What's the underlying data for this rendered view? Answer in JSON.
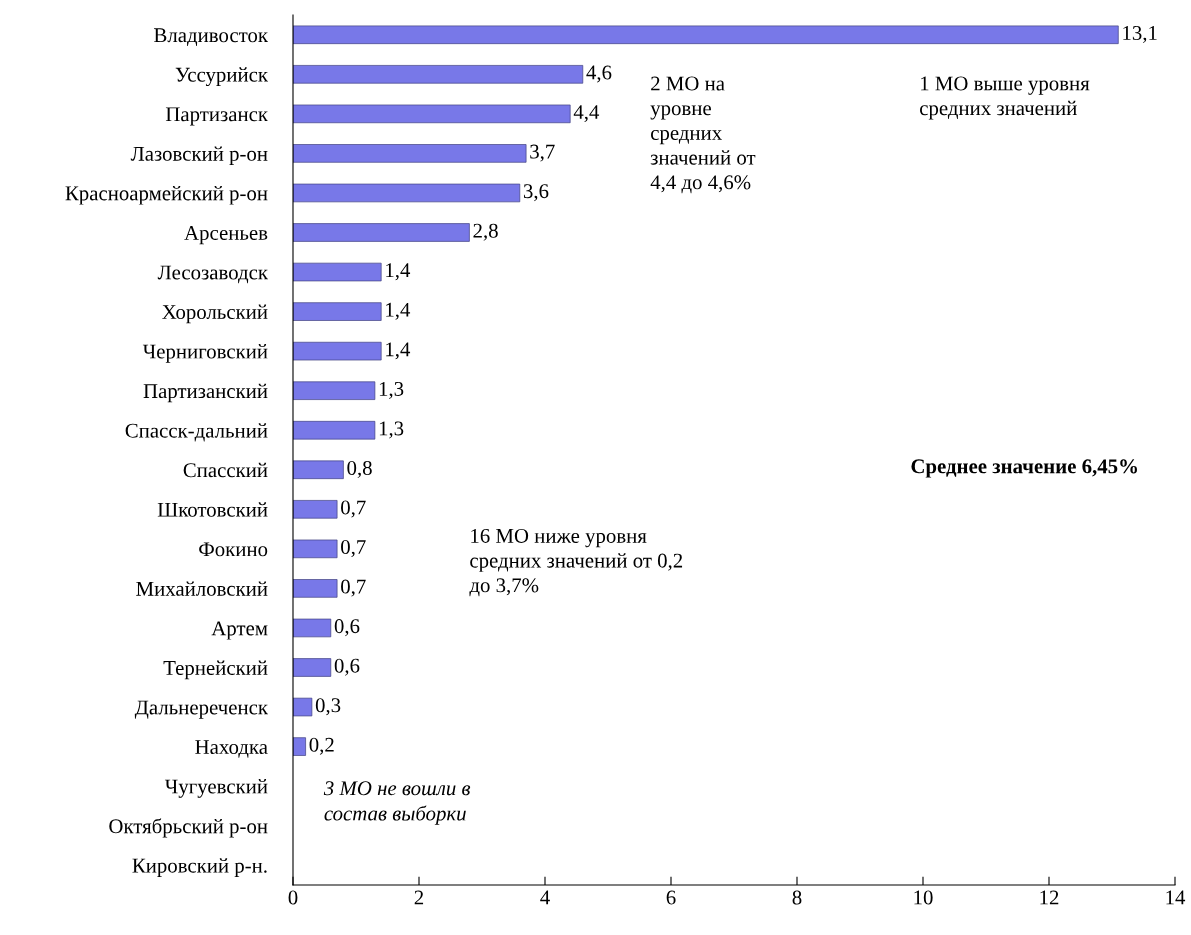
{
  "chart_data": {
    "type": "bar",
    "orientation": "horizontal",
    "categories": [
      "Владивосток",
      "Уссурийск",
      "Партизанск",
      "Лазовский р-он",
      "Красноармейский р-он",
      "Арсеньев",
      "Лесозаводск",
      "Хорольский",
      "Черниговский",
      "Партизанский",
      "Спасск-дальний",
      "Спасский",
      "Шкотовский",
      "Фокино",
      "Михайловский",
      "Артем",
      "Тернейский",
      "Дальнереченск",
      "Находка",
      "Чугуевский",
      "Октябрьский р-он",
      "Кировский р-н."
    ],
    "values": [
      13.1,
      4.6,
      4.4,
      3.7,
      3.6,
      2.8,
      1.4,
      1.4,
      1.4,
      1.3,
      1.3,
      0.8,
      0.7,
      0.7,
      0.7,
      0.6,
      0.6,
      0.3,
      0.2,
      null,
      null,
      null
    ],
    "value_labels": [
      "13,1",
      "4,6",
      "4,4",
      "3,7",
      "3,6",
      "2,8",
      "1,4",
      "1,4",
      "1,4",
      "1,3",
      "1,3",
      "0,8",
      "0,7",
      "0,7",
      "0,7",
      "0,6",
      "0,6",
      "0,3",
      "0,2",
      null,
      null,
      null
    ],
    "color": "#7878e8",
    "xlim": [
      0,
      14
    ],
    "xticks": [
      0,
      2,
      4,
      6,
      8,
      10,
      12,
      14
    ],
    "grid": false,
    "legend": false,
    "annotations": [
      "2 МО на\nуровне\nсредних\nзначений от\n4,4 до 4,6%",
      "1 МО выше уровня\nсредних значений",
      "Среднее значение 6,45%",
      "16 МО ниже уровня\nсредних значений от 0,2\nдо 3,7%",
      "3 МО не вошли в\nсостав выборки"
    ]
  }
}
